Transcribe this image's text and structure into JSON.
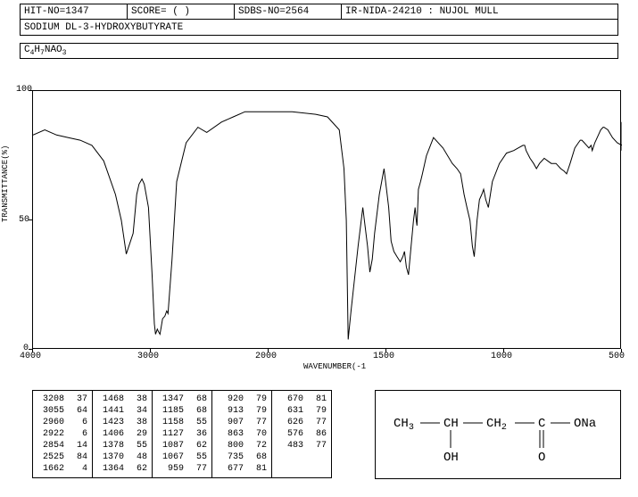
{
  "header": {
    "hit_no": "HIT-NO=1347",
    "score": "SCORE=   (  )",
    "sdbs_no": "SDBS-NO=2564",
    "ir_info": "IR-NIDA-24210 : NUJOL MULL"
  },
  "compound_name": "SODIUM DL-3-HYDROXYBUTYRATE",
  "formula_raw": "C4H7NAO3",
  "chart": {
    "type": "line",
    "xlabel": "WAVENUMBER(-1",
    "ylabel": "TRANSMITTANCE(%)",
    "ylim": [
      0,
      100
    ],
    "yticks": [
      0,
      50,
      100
    ],
    "xlim": [
      4000,
      400
    ],
    "xticks": [
      4000,
      3000,
      2000,
      1500,
      1000,
      500
    ],
    "background_color": "#ffffff",
    "line_color": "#000000",
    "line_width": 1,
    "data": [
      [
        4000,
        83
      ],
      [
        3900,
        85
      ],
      [
        3800,
        83
      ],
      [
        3700,
        82
      ],
      [
        3600,
        81
      ],
      [
        3500,
        79
      ],
      [
        3400,
        73
      ],
      [
        3300,
        60
      ],
      [
        3250,
        50
      ],
      [
        3208,
        37
      ],
      [
        3150,
        45
      ],
      [
        3120,
        60
      ],
      [
        3100,
        64
      ],
      [
        3075,
        66
      ],
      [
        3055,
        64
      ],
      [
        3020,
        55
      ],
      [
        2990,
        30
      ],
      [
        2970,
        10
      ],
      [
        2960,
        6
      ],
      [
        2945,
        8
      ],
      [
        2935,
        7
      ],
      [
        2922,
        6
      ],
      [
        2900,
        12
      ],
      [
        2880,
        13
      ],
      [
        2865,
        15
      ],
      [
        2854,
        14
      ],
      [
        2820,
        35
      ],
      [
        2780,
        65
      ],
      [
        2700,
        80
      ],
      [
        2600,
        86
      ],
      [
        2525,
        84
      ],
      [
        2400,
        88
      ],
      [
        2300,
        90
      ],
      [
        2200,
        92
      ],
      [
        2100,
        92
      ],
      [
        2000,
        92
      ],
      [
        1900,
        92
      ],
      [
        1800,
        91
      ],
      [
        1750,
        90
      ],
      [
        1700,
        85
      ],
      [
        1680,
        70
      ],
      [
        1670,
        50
      ],
      [
        1662,
        4
      ],
      [
        1650,
        15
      ],
      [
        1620,
        40
      ],
      [
        1600,
        55
      ],
      [
        1580,
        40
      ],
      [
        1570,
        30
      ],
      [
        1560,
        35
      ],
      [
        1550,
        45
      ],
      [
        1530,
        60
      ],
      [
        1510,
        70
      ],
      [
        1490,
        55
      ],
      [
        1480,
        42
      ],
      [
        1468,
        38
      ],
      [
        1455,
        36
      ],
      [
        1441,
        34
      ],
      [
        1430,
        36
      ],
      [
        1423,
        38
      ],
      [
        1415,
        32
      ],
      [
        1406,
        29
      ],
      [
        1395,
        40
      ],
      [
        1385,
        50
      ],
      [
        1378,
        55
      ],
      [
        1373,
        50
      ],
      [
        1370,
        48
      ],
      [
        1367,
        55
      ],
      [
        1364,
        62
      ],
      [
        1355,
        65
      ],
      [
        1347,
        68
      ],
      [
        1330,
        75
      ],
      [
        1300,
        82
      ],
      [
        1260,
        78
      ],
      [
        1220,
        72
      ],
      [
        1200,
        70
      ],
      [
        1185,
        68
      ],
      [
        1170,
        60
      ],
      [
        1158,
        55
      ],
      [
        1145,
        50
      ],
      [
        1135,
        40
      ],
      [
        1127,
        36
      ],
      [
        1115,
        50
      ],
      [
        1105,
        58
      ],
      [
        1095,
        60
      ],
      [
        1087,
        62
      ],
      [
        1078,
        58
      ],
      [
        1067,
        55
      ],
      [
        1050,
        65
      ],
      [
        1020,
        72
      ],
      [
        990,
        76
      ],
      [
        959,
        77
      ],
      [
        940,
        78
      ],
      [
        920,
        79
      ],
      [
        913,
        79
      ],
      [
        907,
        77
      ],
      [
        890,
        74
      ],
      [
        875,
        72
      ],
      [
        863,
        70
      ],
      [
        850,
        72
      ],
      [
        830,
        74
      ],
      [
        815,
        73
      ],
      [
        800,
        72
      ],
      [
        780,
        72
      ],
      [
        760,
        70
      ],
      [
        745,
        69
      ],
      [
        735,
        68
      ],
      [
        720,
        72
      ],
      [
        700,
        78
      ],
      [
        685,
        80
      ],
      [
        677,
        81
      ],
      [
        670,
        81
      ],
      [
        660,
        80
      ],
      [
        650,
        79
      ],
      [
        640,
        78
      ],
      [
        631,
        79
      ],
      [
        626,
        77
      ],
      [
        615,
        80
      ],
      [
        600,
        83
      ],
      [
        590,
        85
      ],
      [
        580,
        86
      ],
      [
        576,
        86
      ],
      [
        560,
        85
      ],
      [
        540,
        82
      ],
      [
        520,
        80
      ],
      [
        500,
        79
      ],
      [
        490,
        78
      ],
      [
        483,
        77
      ],
      [
        470,
        78
      ],
      [
        460,
        82
      ],
      [
        450,
        85
      ],
      [
        440,
        88
      ],
      [
        420,
        85
      ],
      [
        400,
        80
      ]
    ]
  },
  "peak_table": {
    "columns": [
      [
        [
          3208,
          37
        ],
        [
          3055,
          64
        ],
        [
          2960,
          6
        ],
        [
          2922,
          6
        ],
        [
          2854,
          14
        ],
        [
          2525,
          84
        ],
        [
          1662,
          4
        ]
      ],
      [
        [
          1468,
          38
        ],
        [
          1441,
          34
        ],
        [
          1423,
          38
        ],
        [
          1406,
          29
        ],
        [
          1378,
          55
        ],
        [
          1370,
          48
        ],
        [
          1364,
          62
        ]
      ],
      [
        [
          1347,
          68
        ],
        [
          1185,
          68
        ],
        [
          1158,
          55
        ],
        [
          1127,
          36
        ],
        [
          1087,
          62
        ],
        [
          1067,
          55
        ],
        [
          959,
          77
        ]
      ],
      [
        [
          920,
          79
        ],
        [
          913,
          79
        ],
        [
          907,
          77
        ],
        [
          863,
          70
        ],
        [
          800,
          72
        ],
        [
          735,
          68
        ],
        [
          677,
          81
        ]
      ],
      [
        [
          670,
          81
        ],
        [
          631,
          79
        ],
        [
          626,
          77
        ],
        [
          576,
          86
        ],
        [
          483,
          77
        ]
      ]
    ]
  },
  "structure": {
    "groups": [
      "CH₃",
      "CH",
      "CH₂",
      "C",
      "ONa"
    ],
    "sub1": "OH",
    "sub2": "O"
  }
}
